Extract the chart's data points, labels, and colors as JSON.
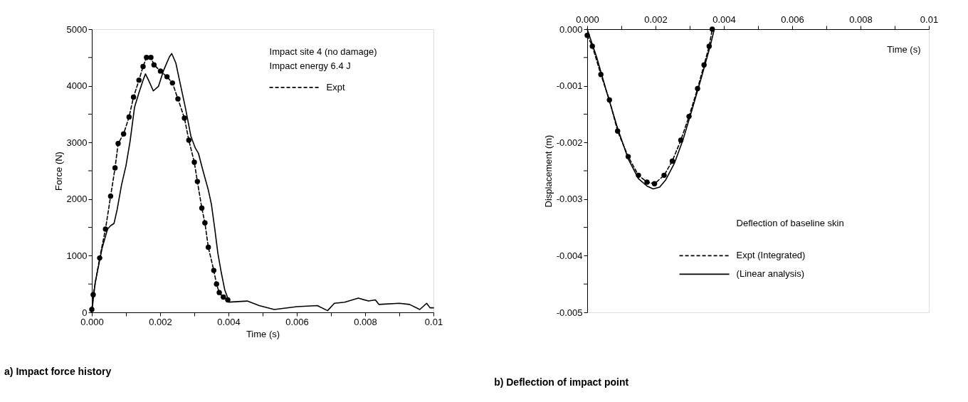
{
  "chart_data": [
    {
      "type": "line",
      "title": "a)  Impact force history",
      "xlabel": "Time (s)",
      "ylabel": "Force (N)",
      "xlim": [
        0,
        0.01
      ],
      "xticks": [
        {
          "value": 0,
          "label": "0.000"
        },
        {
          "value": 0.001,
          "label": null
        },
        {
          "value": 0.002,
          "label": "0.002"
        },
        {
          "value": 0.003,
          "label": null
        },
        {
          "value": 0.004,
          "label": "0.004"
        },
        {
          "value": 0.005,
          "label": null
        },
        {
          "value": 0.006,
          "label": "0.006"
        },
        {
          "value": 0.007,
          "label": null
        },
        {
          "value": 0.008,
          "label": "0.008"
        },
        {
          "value": 0.009,
          "label": null
        },
        0.01
      ],
      "ylim": [
        0,
        5000
      ],
      "yticks": [
        0,
        {
          "value": 500,
          "label": null
        },
        1000,
        {
          "value": 1500,
          "label": null
        },
        2000,
        {
          "value": 2500,
          "label": null
        },
        3000,
        {
          "value": 3500,
          "label": null
        },
        4000,
        {
          "value": 4500,
          "label": null
        },
        5000
      ],
      "annotations": [
        "Impact site 4 (no damage)",
        "Impact energy 6.4 J"
      ],
      "legend": "top right",
      "grid": false,
      "series": [
        {
          "name": "Expt",
          "color": "#000000",
          "marker": "circle",
          "line_style": "dashed",
          "x": [
            0,
            4e-05,
            0.00023,
            0.0004,
            0.00055,
            0.00068,
            0.00077,
            0.00093,
            0.00109,
            0.00122,
            0.00138,
            0.0015,
            0.0016,
            0.00173,
            0.00182,
            0.00201,
            0.0022,
            0.00236,
            0.00252,
            0.00271,
            0.00284,
            0.003,
            0.00309,
            0.00322,
            0.00331,
            0.00341,
            0.00357,
            0.00365,
            0.00373,
            0.00385,
            0.00398
          ],
          "values": [
            50,
            310,
            960,
            1470,
            2050,
            2550,
            2980,
            3150,
            3450,
            3800,
            4100,
            4340,
            4500,
            4500,
            4370,
            4260,
            4160,
            4050,
            3770,
            3430,
            3040,
            2650,
            2310,
            1840,
            1580,
            1150,
            740,
            500,
            350,
            270,
            220
          ]
        },
        {
          "color": "#000000",
          "line_style": "solid",
          "x": [
            0,
            0.0001,
            0.0003,
            0.00046,
            0.00055,
            0.00065,
            0.00074,
            0.00087,
            0.001,
            0.00112,
            0.00125,
            0.00138,
            0.0015,
            0.00157,
            0.00166,
            0.0018,
            0.00195,
            0.0021,
            0.00227,
            0.00234,
            0.00246,
            0.00258,
            0.00274,
            0.0029,
            0.00303,
            0.00312,
            0.00325,
            0.00341,
            0.0035,
            0.0036,
            0.00369,
            0.00379,
            0.00389,
            0.00398,
            0.00401,
            0.00455,
            0.0049,
            0.00534,
            0.006,
            0.0066,
            0.0069,
            0.0071,
            0.0074,
            0.0078,
            0.0081,
            0.0083,
            0.0084,
            0.009,
            0.0093,
            0.0096,
            0.0098,
            0.0099,
            0.01
          ],
          "values": [
            0,
            530,
            1130,
            1470,
            1530,
            1570,
            1810,
            2250,
            2590,
            3020,
            3620,
            3880,
            4100,
            4210,
            4100,
            3910,
            3990,
            4270,
            4510,
            4570,
            4400,
            4060,
            3610,
            3110,
            2900,
            2810,
            2510,
            2160,
            1910,
            1470,
            1040,
            700,
            400,
            250,
            180,
            200,
            120,
            50,
            100,
            120,
            30,
            160,
            180,
            250,
            200,
            220,
            140,
            160,
            140,
            50,
            160,
            80,
            80
          ]
        }
      ]
    },
    {
      "type": "line",
      "title": "b)  Deflection of impact point",
      "xlabel": "Time (s)",
      "ylabel": "Displacement (m)",
      "xlim": [
        0,
        0.01
      ],
      "xticks": [
        {
          "value": 0,
          "label": "0.000"
        },
        {
          "value": 0.001,
          "label": null
        },
        {
          "value": 0.002,
          "label": "0.002"
        },
        {
          "value": 0.003,
          "label": null
        },
        {
          "value": 0.004,
          "label": "0.004"
        },
        {
          "value": 0.005,
          "label": null
        },
        {
          "value": 0.006,
          "label": "0.006"
        },
        {
          "value": 0.007,
          "label": null
        },
        {
          "value": 0.008,
          "label": "0.008"
        },
        {
          "value": 0.009,
          "label": null
        },
        0.01
      ],
      "ylim": [
        -0.005,
        0
      ],
      "yticks": [
        {
          "value": 0,
          "label": "0.000"
        },
        {
          "value": -0.0005,
          "label": null
        },
        -0.001,
        {
          "value": -0.0015,
          "label": null
        },
        -0.002,
        {
          "value": -0.0025,
          "label": null
        },
        -0.003,
        {
          "value": -0.0035,
          "label": null
        },
        -0.004,
        {
          "value": -0.0045,
          "label": null
        },
        -0.005
      ],
      "annotations": [
        "Deflection of baseline skin"
      ],
      "legend": "bottom",
      "grid": false,
      "series": [
        {
          "name": "Expt (Integrated)",
          "color": "#000000",
          "marker": "circle",
          "line_style": "dashed",
          "x": [
            0,
            0.00015,
            0.0004,
            0.00065,
            0.00089,
            0.0012,
            0.0015,
            0.00175,
            0.00197,
            0.00225,
            0.00249,
            0.00274,
            0.00298,
            0.00323,
            0.00342,
            0.00357,
            0.00366
          ],
          "values": [
            -0.00011,
            -0.0003,
            -0.0008,
            -0.00125,
            -0.0018,
            -0.00225,
            -0.00258,
            -0.0027,
            -0.00273,
            -0.00258,
            -0.00233,
            -0.00196,
            -0.00154,
            -0.00105,
            -0.00063,
            -0.0003,
            0
          ]
        },
        {
          "name": "(Linear analysis)",
          "color": "#000000",
          "line_style": "solid",
          "x": [
            0,
            0.00028,
            0.00058,
            0.00089,
            0.0012,
            0.0015,
            0.00175,
            0.00193,
            0.00212,
            0.0023,
            0.00255,
            0.0028,
            0.00305,
            0.00335,
            0.0036,
            0.00372
          ],
          "values": [
            0,
            -0.0005,
            -0.00113,
            -0.00175,
            -0.00229,
            -0.00264,
            -0.00277,
            -0.00282,
            -0.00279,
            -0.00266,
            -0.00237,
            -0.00196,
            -0.00146,
            -0.00084,
            -0.0003,
            0
          ]
        }
      ]
    }
  ]
}
